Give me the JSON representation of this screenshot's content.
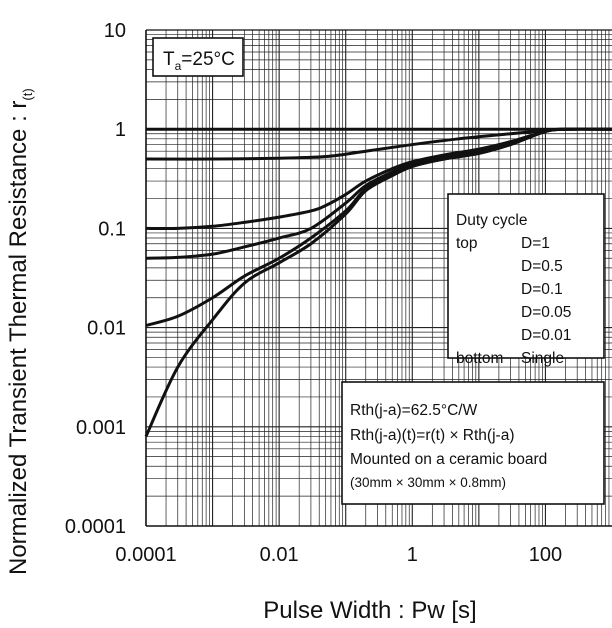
{
  "chart_data": {
    "type": "line",
    "title": "",
    "xlabel": "Pulse Width : Pw [s]",
    "ylabel_main": "Normalized Transient Thermal Resistance : r",
    "ylabel_sub": "(t)",
    "x_scale": "log",
    "y_scale": "log",
    "xlim": [
      0.0001,
      1000
    ],
    "ylim": [
      0.0001,
      10
    ],
    "grid": true,
    "x_tick_labels": [
      {
        "value": 0.0001,
        "label": "0.0001"
      },
      {
        "value": 0.01,
        "label": "0.01"
      },
      {
        "value": 1,
        "label": "1"
      },
      {
        "value": 100,
        "label": "100"
      }
    ],
    "y_tick_labels": [
      {
        "value": 10,
        "label": "10"
      },
      {
        "value": 1,
        "label": "1"
      },
      {
        "value": 0.1,
        "label": "0.1"
      },
      {
        "value": 0.01,
        "label": "0.01"
      },
      {
        "value": 0.001,
        "label": "0.001"
      },
      {
        "value": 0.0001,
        "label": "0.0001"
      }
    ],
    "condition_box": {
      "prefix": "T",
      "sub": "a",
      "suffix": "=25°C"
    },
    "legend": {
      "title": "Duty cycle",
      "rows": [
        {
          "left": "top",
          "right": "D=1"
        },
        {
          "left": "",
          "right": "D=0.5"
        },
        {
          "left": "",
          "right": "D=0.1"
        },
        {
          "left": "",
          "right": "D=0.05"
        },
        {
          "left": "",
          "right": "D=0.01"
        },
        {
          "left": "bottom",
          "right": "Single"
        }
      ]
    },
    "note_lines": [
      "Rth(j-a)=62.5°C/W",
      "Rth(j-a)(t)=r(t) × Rth(j-a)",
      "Mounted on a ceramic board",
      "(30mm × 30mm × 0.8mm)"
    ],
    "series": [
      {
        "name": "D=1",
        "x": [
          0.0001,
          1000
        ],
        "y": [
          1,
          1
        ]
      },
      {
        "name": "D=0.5",
        "x": [
          0.0001,
          0.001,
          0.01,
          0.05,
          0.2,
          1,
          5,
          30,
          100,
          200,
          1000
        ],
        "y": [
          0.5,
          0.5,
          0.51,
          0.53,
          0.6,
          0.7,
          0.8,
          0.9,
          0.97,
          1.0,
          1.0
        ]
      },
      {
        "name": "D=0.1",
        "x": [
          0.0001,
          0.0003,
          0.001,
          0.003,
          0.01,
          0.03,
          0.05,
          0.1,
          0.2,
          0.5,
          1,
          3,
          10,
          30,
          100,
          200,
          1000
        ],
        "y": [
          0.1,
          0.1,
          0.105,
          0.115,
          0.13,
          0.15,
          0.17,
          0.22,
          0.3,
          0.4,
          0.47,
          0.55,
          0.63,
          0.75,
          0.95,
          1.0,
          1.0
        ]
      },
      {
        "name": "D=0.05",
        "x": [
          0.0001,
          0.0003,
          0.001,
          0.003,
          0.01,
          0.03,
          0.1,
          0.2,
          0.5,
          1,
          3,
          10,
          30,
          100,
          200,
          1000
        ],
        "y": [
          0.05,
          0.051,
          0.055,
          0.065,
          0.08,
          0.1,
          0.18,
          0.27,
          0.37,
          0.45,
          0.52,
          0.6,
          0.72,
          0.95,
          1.0,
          1.0
        ]
      },
      {
        "name": "D=0.01",
        "x": [
          0.0001,
          0.0003,
          0.001,
          0.003,
          0.01,
          0.03,
          0.1,
          0.2,
          0.5,
          1,
          3,
          10,
          30,
          100,
          200,
          1000
        ],
        "y": [
          0.0105,
          0.013,
          0.02,
          0.033,
          0.05,
          0.08,
          0.15,
          0.25,
          0.35,
          0.43,
          0.5,
          0.57,
          0.7,
          0.95,
          1.0,
          1.0
        ]
      },
      {
        "name": "Single",
        "x": [
          0.0001,
          0.0003,
          0.001,
          0.003,
          0.01,
          0.03,
          0.1,
          0.2,
          0.5,
          1,
          3,
          10,
          30,
          100,
          200,
          1000
        ],
        "y": [
          0.0008,
          0.004,
          0.012,
          0.028,
          0.045,
          0.07,
          0.14,
          0.24,
          0.34,
          0.42,
          0.5,
          0.57,
          0.7,
          0.95,
          1.0,
          1.0
        ]
      }
    ]
  }
}
